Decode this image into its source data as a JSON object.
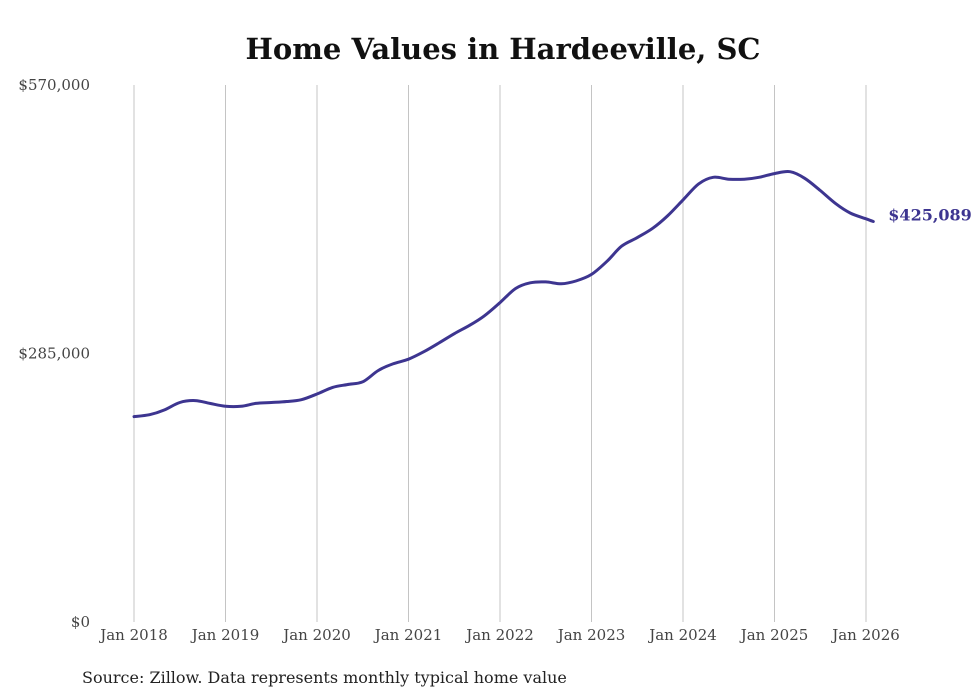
{
  "chart_data": {
    "type": "line",
    "title": "Home Values in Hardeeville, SC",
    "xlabel": "",
    "ylabel": "",
    "y_tick_labels": [
      "$0",
      "$285,000",
      "$570,000"
    ],
    "y_ticks": [
      0,
      285000,
      570000
    ],
    "ylim": [
      0,
      570000
    ],
    "x_tick_labels": [
      "Jan 2018",
      "Jan 2019",
      "Jan 2020",
      "Jan 2021",
      "Jan 2022",
      "Jan 2023",
      "Jan 2024",
      "Jan 2025",
      "Jan 2026"
    ],
    "x_ticks": [
      2018,
      2019,
      2020,
      2021,
      2022,
      2023,
      2024,
      2025,
      2026
    ],
    "xlim": [
      2018,
      2026
    ],
    "grid": "vertical",
    "series": [
      {
        "name": "Typical home value",
        "color": "#3d3590",
        "x": [
          2018.0,
          2018.17,
          2018.33,
          2018.5,
          2018.67,
          2018.83,
          2019.0,
          2019.17,
          2019.33,
          2019.5,
          2019.67,
          2019.83,
          2020.0,
          2020.17,
          2020.33,
          2020.5,
          2020.67,
          2020.83,
          2021.0,
          2021.17,
          2021.33,
          2021.5,
          2021.67,
          2021.83,
          2022.0,
          2022.17,
          2022.33,
          2022.5,
          2022.67,
          2022.83,
          2023.0,
          2023.17,
          2023.33,
          2023.5,
          2023.67,
          2023.83,
          2024.0,
          2024.17,
          2024.33,
          2024.5,
          2024.67,
          2024.83,
          2025.0,
          2025.17,
          2025.33,
          2025.5,
          2025.67,
          2025.83,
          2026.0,
          2026.08
        ],
        "values": [
          218000,
          220000,
          225000,
          233000,
          235000,
          232000,
          229000,
          229000,
          232000,
          233000,
          234000,
          236000,
          242000,
          249000,
          252000,
          255000,
          267000,
          274000,
          279000,
          287000,
          296000,
          306000,
          315000,
          325000,
          339000,
          354000,
          360000,
          361000,
          359000,
          362000,
          369000,
          383000,
          399000,
          408000,
          418000,
          431000,
          448000,
          465000,
          472000,
          470000,
          470000,
          472000,
          476000,
          478000,
          471000,
          458000,
          444000,
          434000,
          428000,
          425089
        ]
      }
    ],
    "end_label": "$425,089",
    "source": "Source: Zillow. Data represents monthly typical home value"
  }
}
